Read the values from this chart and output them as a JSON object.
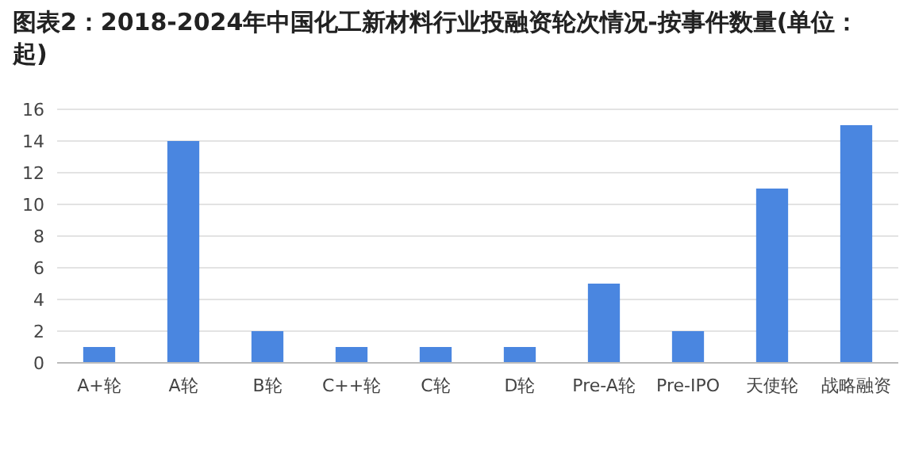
{
  "chart_data": {
    "type": "bar",
    "title": "图表2：2018-2024年中国化工新材料行业投融资轮次情况-按事件数量(单位：起)",
    "categories": [
      "A+轮",
      "A轮",
      "B轮",
      "C++轮",
      "C轮",
      "D轮",
      "Pre-A轮",
      "Pre-IPO",
      "天使轮",
      "战略融资"
    ],
    "values": [
      1,
      14,
      2,
      1,
      1,
      1,
      5,
      2,
      11,
      15
    ],
    "color": "#4a86e0",
    "ylim": [
      0,
      16
    ],
    "yticks": [
      0,
      2,
      4,
      6,
      8,
      10,
      12,
      14,
      16
    ],
    "grid": "y"
  }
}
